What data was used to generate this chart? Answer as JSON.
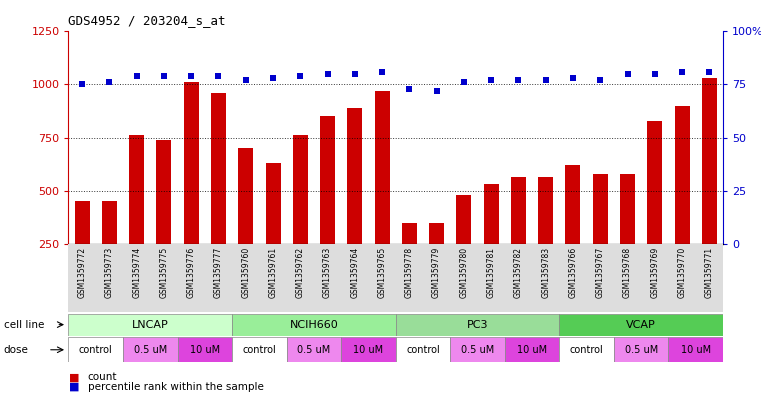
{
  "title": "GDS4952 / 203204_s_at",
  "samples": [
    "GSM1359772",
    "GSM1359773",
    "GSM1359774",
    "GSM1359775",
    "GSM1359776",
    "GSM1359777",
    "GSM1359760",
    "GSM1359761",
    "GSM1359762",
    "GSM1359763",
    "GSM1359764",
    "GSM1359765",
    "GSM1359778",
    "GSM1359779",
    "GSM1359780",
    "GSM1359781",
    "GSM1359782",
    "GSM1359783",
    "GSM1359766",
    "GSM1359767",
    "GSM1359768",
    "GSM1359769",
    "GSM1359770",
    "GSM1359771"
  ],
  "counts": [
    450,
    450,
    760,
    740,
    1010,
    960,
    700,
    630,
    760,
    850,
    890,
    970,
    345,
    345,
    480,
    530,
    565,
    565,
    620,
    580,
    580,
    830,
    900,
    1030
  ],
  "percentile_ranks": [
    75,
    76,
    79,
    79,
    79,
    79,
    77,
    78,
    79,
    80,
    80,
    81,
    73,
    72,
    76,
    77,
    77,
    77,
    78,
    77,
    80,
    80,
    81,
    81
  ],
  "cell_lines": [
    {
      "name": "LNCAP",
      "start": 0,
      "end": 6,
      "color": "#ccffcc"
    },
    {
      "name": "NCIH660",
      "start": 6,
      "end": 12,
      "color": "#99ee99"
    },
    {
      "name": "PC3",
      "start": 12,
      "end": 18,
      "color": "#99dd99"
    },
    {
      "name": "VCAP",
      "start": 18,
      "end": 24,
      "color": "#55cc55"
    }
  ],
  "doses": [
    {
      "name": "control",
      "start": 0,
      "end": 2,
      "color": "#ffffff"
    },
    {
      "name": "0.5 uM",
      "start": 2,
      "end": 4,
      "color": "#ee88ee"
    },
    {
      "name": "10 uM",
      "start": 4,
      "end": 6,
      "color": "#dd44dd"
    },
    {
      "name": "control",
      "start": 6,
      "end": 8,
      "color": "#ffffff"
    },
    {
      "name": "0.5 uM",
      "start": 8,
      "end": 10,
      "color": "#ee88ee"
    },
    {
      "name": "10 uM",
      "start": 10,
      "end": 12,
      "color": "#dd44dd"
    },
    {
      "name": "control",
      "start": 12,
      "end": 14,
      "color": "#ffffff"
    },
    {
      "name": "0.5 uM",
      "start": 14,
      "end": 16,
      "color": "#ee88ee"
    },
    {
      "name": "10 uM",
      "start": 16,
      "end": 18,
      "color": "#dd44dd"
    },
    {
      "name": "control",
      "start": 18,
      "end": 20,
      "color": "#ffffff"
    },
    {
      "name": "0.5 uM",
      "start": 20,
      "end": 22,
      "color": "#ee88ee"
    },
    {
      "name": "10 uM",
      "start": 22,
      "end": 24,
      "color": "#dd44dd"
    }
  ],
  "bar_color": "#cc0000",
  "dot_color": "#0000cc",
  "bar_bottom": 250,
  "ylim_left": [
    250,
    1250
  ],
  "ylim_right": [
    0,
    100
  ],
  "yticks_left": [
    250,
    500,
    750,
    1000,
    1250
  ],
  "yticks_right": [
    0,
    25,
    50,
    75,
    100
  ],
  "grid_values": [
    500,
    750,
    1000
  ],
  "background_color": "#ffffff",
  "label_count": "count",
  "label_percentile": "percentile rank within the sample",
  "cell_line_label": "cell line",
  "dose_label": "dose"
}
